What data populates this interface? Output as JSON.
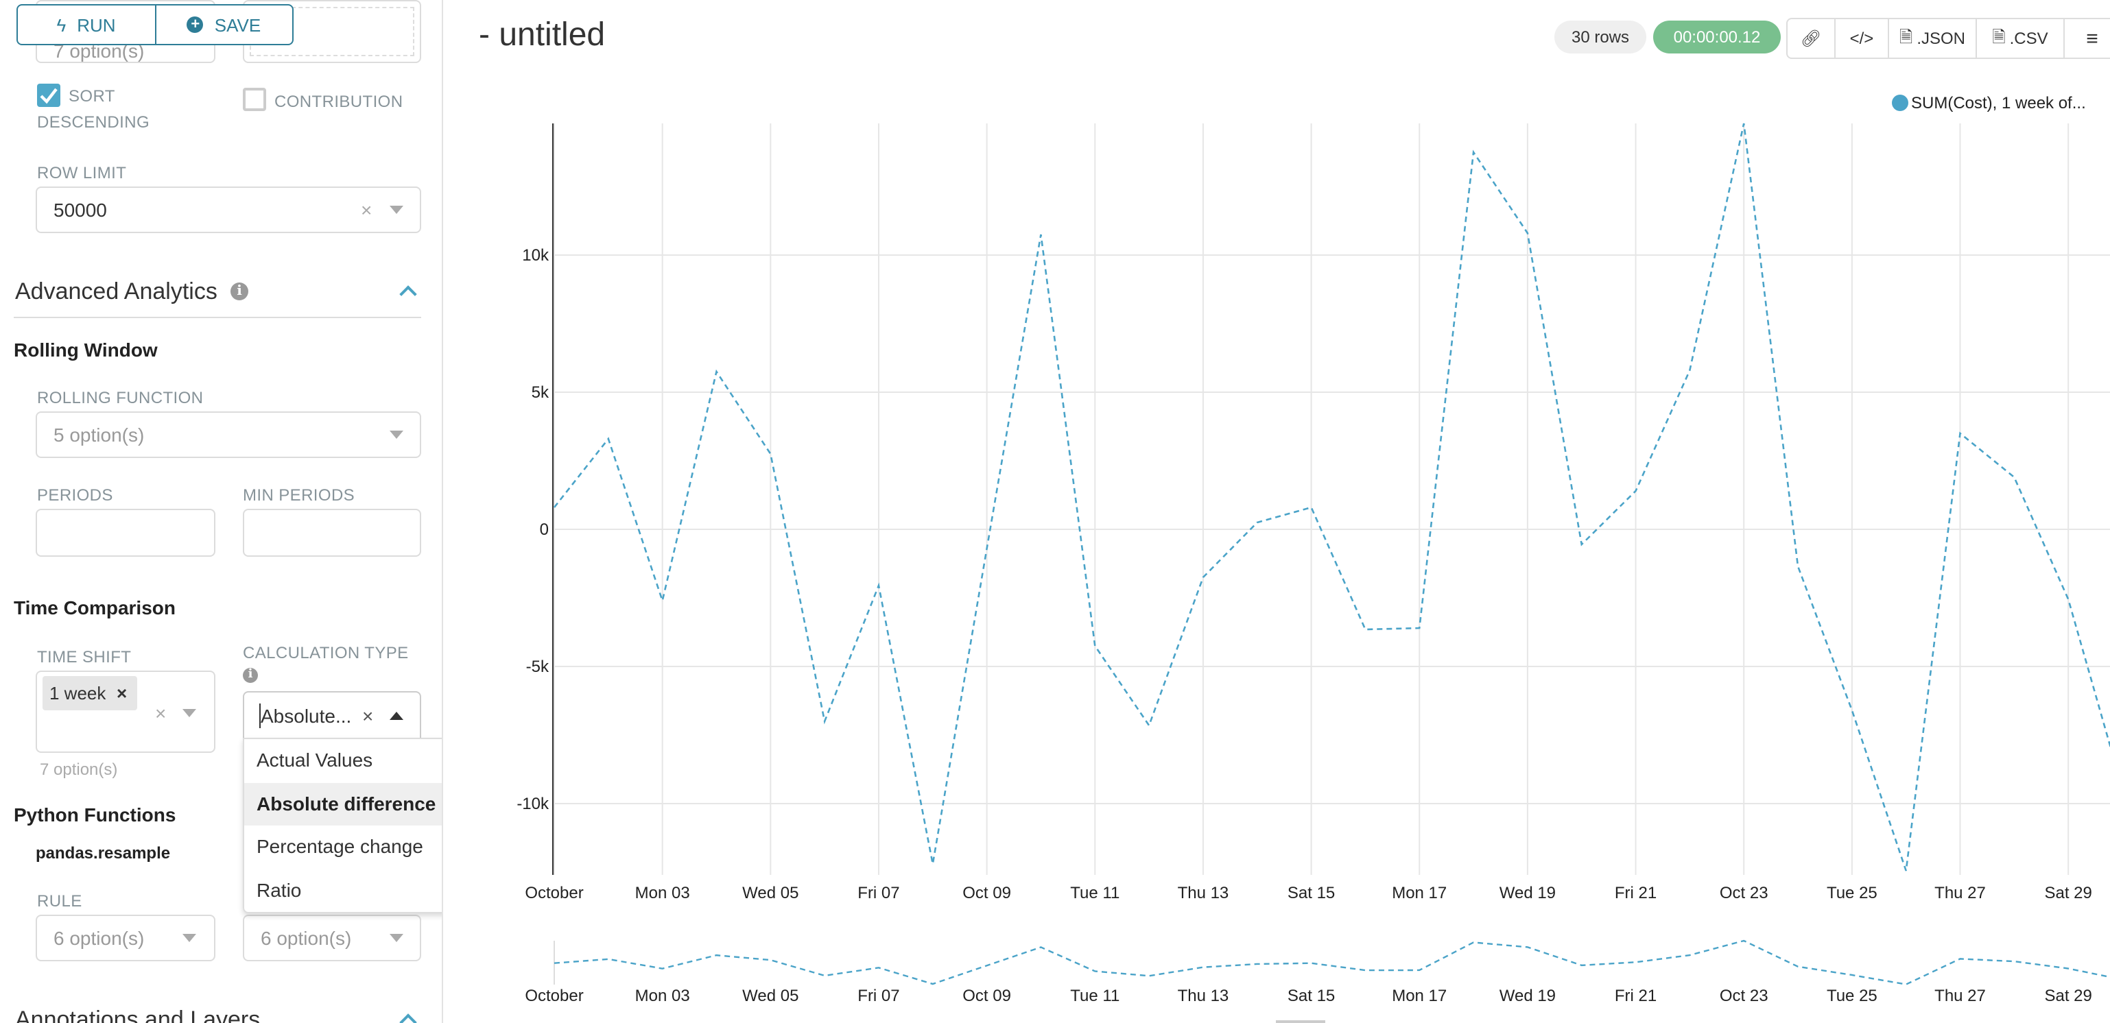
{
  "toolbar": {
    "run_label": "RUN",
    "save_label": "SAVE",
    "run_icon": "bolt-icon",
    "save_icon": "plus-circle-icon"
  },
  "sidebar": {
    "top_select_value": "7 option(s)",
    "sort_descending": {
      "label_line1": "SORT",
      "label_line2": "DESCENDING",
      "checked": true
    },
    "contribution": {
      "label": "CONTRIBUTION",
      "checked": false
    },
    "row_limit": {
      "label": "ROW LIMIT",
      "value": "50000"
    },
    "advanced_analytics": {
      "title": "Advanced Analytics",
      "expanded": true
    },
    "rolling_window": {
      "title": "Rolling Window",
      "rolling_function_label": "ROLLING FUNCTION",
      "rolling_function_placeholder": "5 option(s)",
      "periods_label": "PERIODS",
      "min_periods_label": "MIN PERIODS"
    },
    "time_comparison": {
      "title": "Time Comparison",
      "time_shift_label": "TIME SHIFT",
      "time_shift_tag": "1 week",
      "time_shift_hint": "7 option(s)",
      "calculation_type_label": "CALCULATION TYPE",
      "calculation_type_value": "Absolute...",
      "options": [
        "Actual Values",
        "Absolute difference",
        "Percentage change",
        "Ratio"
      ],
      "highlighted": "Absolute difference"
    },
    "python_functions": {
      "title": "Python Functions",
      "subtitle": "pandas.resample",
      "rule_label": "RULE",
      "rule_placeholder": "6 option(s)",
      "method_placeholder": "6 option(s)"
    },
    "annotations": {
      "title": "Annotations and Layers",
      "expanded": true
    }
  },
  "header": {
    "title": "- untitled",
    "rows_badge": "30 rows",
    "timer_badge": "00:00:00.12",
    "json_label": ".JSON",
    "csv_label": ".CSV"
  },
  "colors": {
    "accent": "#2e7d97",
    "series": "#4aa3c8",
    "timer": "#79c08e",
    "checkbox": "#4fa8c9"
  },
  "chart_data": {
    "type": "line",
    "legend": "SUM(Cost), 1 week of...",
    "legend_position": "top-right",
    "series": [
      {
        "name": "SUM(Cost), 1 week of...",
        "values": [
          800,
          3300,
          -2600,
          5750,
          2750,
          -7000,
          -2050,
          -12200,
          -700,
          10750,
          -4250,
          -7150,
          -1750,
          250,
          800,
          -3650,
          -3600,
          13750,
          10800,
          -550,
          1400,
          5800,
          14800,
          -1350,
          -6600,
          -12450,
          3500,
          1900,
          -2550,
          -9450
        ]
      }
    ],
    "x_tick_labels": [
      "October",
      "Mon 03",
      "Wed 05",
      "Fri 07",
      "Oct 09",
      "Tue 11",
      "Thu 13",
      "Sat 15",
      "Mon 17",
      "Wed 19",
      "Fri 21",
      "Oct 23",
      "Tue 25",
      "Thu 27",
      "Sat 29"
    ],
    "y_ticks": [
      10000,
      5000,
      0,
      -5000,
      -10000
    ],
    "y_tick_labels": [
      "10k",
      "5k",
      "0",
      "-5k",
      "-10k"
    ],
    "ylim": [
      -12600,
      14800
    ],
    "line_style": "dashed",
    "grid": true
  }
}
